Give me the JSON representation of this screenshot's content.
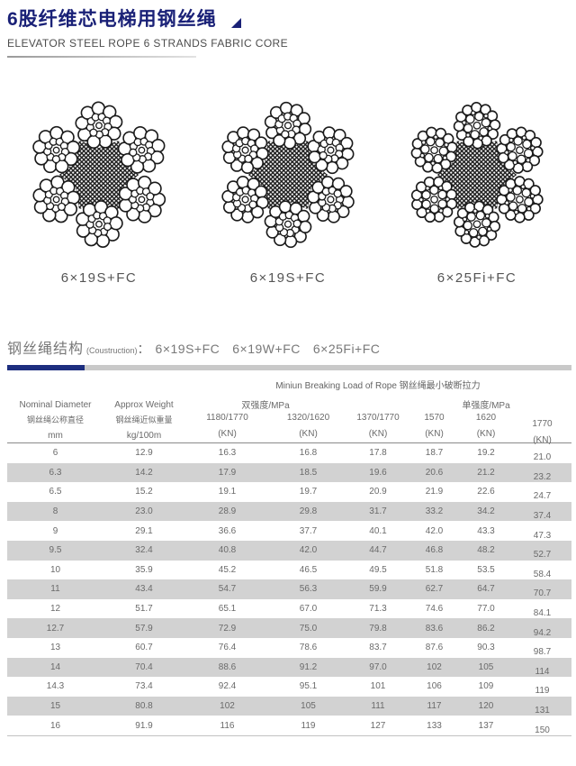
{
  "header": {
    "title_cn": "6股纤维芯电梯用钢丝绳",
    "subtitle_en": "ELEVATOR STEEL ROPE 6 STRANDS FABRIC CORE"
  },
  "diagrams": [
    {
      "label": "6×19S+FC",
      "type": "seale"
    },
    {
      "label": "6×19S+FC",
      "type": "seale2"
    },
    {
      "label": "6×25Fi+FC",
      "type": "filler"
    }
  ],
  "section": {
    "title_cn": "钢丝绳结构",
    "title_en": "(Coustruction)",
    "colon": "：",
    "constructions": [
      "6×19S+FC",
      "6×19W+FC",
      "6×25Fi+FC"
    ]
  },
  "table": {
    "breaking_load_header": "Miniun Breaking Load of Rope 钢丝绳最小破断拉力",
    "group_dual": "双强度/MPa",
    "group_single": "单强度/MPa",
    "col1": {
      "en": "Nominal Diameter",
      "cn": "钢丝绳公称直径",
      "unit": "mm"
    },
    "col2": {
      "en": "Approx Weight",
      "cn": "钢丝绳近似重量",
      "unit": "kg/100m"
    },
    "strength_cols": [
      {
        "label": "1180/1770",
        "unit": "(KN)"
      },
      {
        "label": "1320/1620",
        "unit": "(KN)"
      },
      {
        "label": "1370/1770",
        "unit": "(KN)"
      },
      {
        "label": "1570",
        "unit": "(KN)"
      },
      {
        "label": "1620",
        "unit": "(KN)"
      },
      {
        "label": "1770",
        "unit": "(KN)"
      }
    ],
    "rows": [
      [
        "6",
        "12.9",
        "16.3",
        "16.8",
        "17.8",
        "18.7",
        "19.2",
        "21.0"
      ],
      [
        "6.3",
        "14.2",
        "17.9",
        "18.5",
        "19.6",
        "20.6",
        "21.2",
        "23.2"
      ],
      [
        "6.5",
        "15.2",
        "19.1",
        "19.7",
        "20.9",
        "21.9",
        "22.6",
        "24.7"
      ],
      [
        "8",
        "23.0",
        "28.9",
        "29.8",
        "31.7",
        "33.2",
        "34.2",
        "37.4"
      ],
      [
        "9",
        "29.1",
        "36.6",
        "37.7",
        "40.1",
        "42.0",
        "43.3",
        "47.3"
      ],
      [
        "9.5",
        "32.4",
        "40.8",
        "42.0",
        "44.7",
        "46.8",
        "48.2",
        "52.7"
      ],
      [
        "10",
        "35.9",
        "45.2",
        "46.5",
        "49.5",
        "51.8",
        "53.5",
        "58.4"
      ],
      [
        "11",
        "43.4",
        "54.7",
        "56.3",
        "59.9",
        "62.7",
        "64.7",
        "70.7"
      ],
      [
        "12",
        "51.7",
        "65.1",
        "67.0",
        "71.3",
        "74.6",
        "77.0",
        "84.1"
      ],
      [
        "12.7",
        "57.9",
        "72.9",
        "75.0",
        "79.8",
        "83.6",
        "86.2",
        "94.2"
      ],
      [
        "13",
        "60.7",
        "76.4",
        "78.6",
        "83.7",
        "87.6",
        "90.3",
        "98.7"
      ],
      [
        "14",
        "70.4",
        "88.6",
        "91.2",
        "97.0",
        "102",
        "105",
        "114"
      ],
      [
        "14.3",
        "73.4",
        "92.4",
        "95.1",
        "101",
        "106",
        "109",
        "119"
      ],
      [
        "15",
        "80.8",
        "102",
        "105",
        "111",
        "117",
        "120",
        "131"
      ],
      [
        "16",
        "91.9",
        "116",
        "119",
        "127",
        "133",
        "137",
        "150"
      ]
    ]
  },
  "colors": {
    "navy": "#1a2177",
    "bar_navy": "#1d2e7f",
    "bar_gray": "#c9c9c9",
    "row_gray": "#d2d2d2",
    "text_gray": "#6a6a6a"
  }
}
